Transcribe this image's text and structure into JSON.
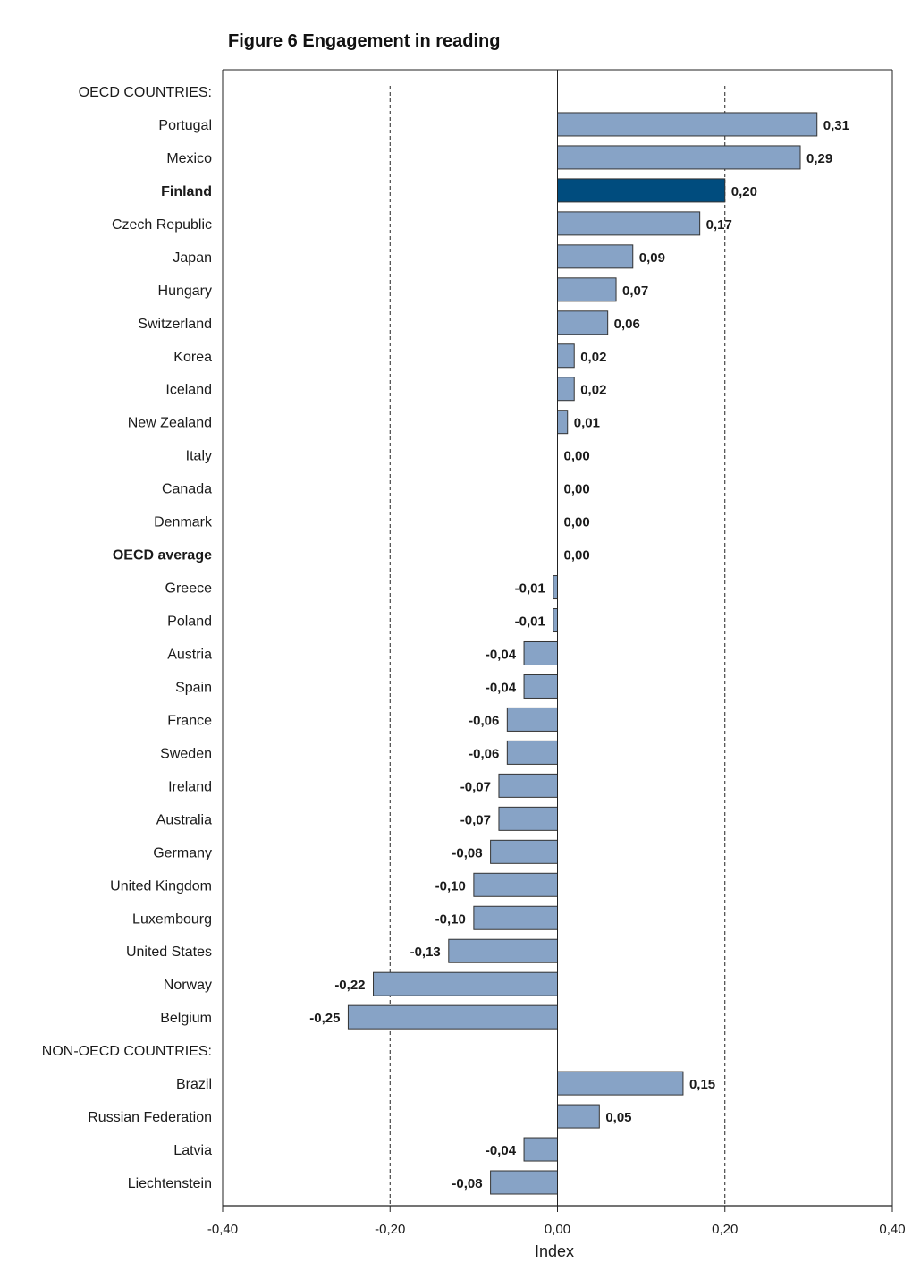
{
  "figure_title": "Figure 6  Engagement in reading",
  "colors": {
    "bar": "#87a3c6",
    "bar_highlight": "#004c7e",
    "highlight_text": "#1d5a8c",
    "bar_stroke": "#333333"
  },
  "chart_data": {
    "type": "bar",
    "orientation": "horizontal",
    "title": "Figure 6  Engagement in reading",
    "xlabel": "Index",
    "ylabel": "",
    "xlim": [
      -0.4,
      0.4
    ],
    "x_ticks": [
      -0.4,
      -0.2,
      0.0,
      0.2,
      0.4
    ],
    "x_tick_labels": [
      "-0,40",
      "-0,20",
      "0,00",
      "0,20",
      "0,40"
    ],
    "grid": "dashed vertical lines at -0,20 and 0,20",
    "rows": [
      {
        "label": "OECD COUNTRIES:",
        "kind": "header"
      },
      {
        "label": "Portugal",
        "value": 0.31,
        "value_label": "0,31"
      },
      {
        "label": "Mexico",
        "value": 0.29,
        "value_label": "0,29"
      },
      {
        "label": "Finland",
        "value": 0.2,
        "value_label": "0,20",
        "highlight": true
      },
      {
        "label": "Czech Republic",
        "value": 0.17,
        "value_label": "0,17"
      },
      {
        "label": "Japan",
        "value": 0.09,
        "value_label": "0,09"
      },
      {
        "label": "Hungary",
        "value": 0.07,
        "value_label": "0,07"
      },
      {
        "label": "Switzerland",
        "value": 0.06,
        "value_label": "0,06"
      },
      {
        "label": "Korea",
        "value": 0.02,
        "value_label": "0,02"
      },
      {
        "label": "Iceland",
        "value": 0.02,
        "value_label": "0,02"
      },
      {
        "label": "New Zealand",
        "value": 0.012,
        "value_label": "0,01"
      },
      {
        "label": "Italy",
        "value": 0.0,
        "value_label": "0,00"
      },
      {
        "label": "Canada",
        "value": 0.0,
        "value_label": "0,00"
      },
      {
        "label": "Denmark",
        "value": 0.0,
        "value_label": "0,00"
      },
      {
        "label": "OECD average",
        "value": 0.0,
        "value_label": "0,00",
        "bold": true
      },
      {
        "label": "Greece",
        "value": -0.005,
        "value_label": "-0,01"
      },
      {
        "label": "Poland",
        "value": -0.005,
        "value_label": "-0,01"
      },
      {
        "label": "Austria",
        "value": -0.04,
        "value_label": "-0,04"
      },
      {
        "label": "Spain",
        "value": -0.04,
        "value_label": "-0,04"
      },
      {
        "label": "France",
        "value": -0.06,
        "value_label": "-0,06"
      },
      {
        "label": "Sweden",
        "value": -0.06,
        "value_label": "-0,06"
      },
      {
        "label": "Ireland",
        "value": -0.07,
        "value_label": "-0,07"
      },
      {
        "label": "Australia",
        "value": -0.07,
        "value_label": "-0,07"
      },
      {
        "label": "Germany",
        "value": -0.08,
        "value_label": "-0,08"
      },
      {
        "label": "United Kingdom",
        "value": -0.1,
        "value_label": "-0,10"
      },
      {
        "label": "Luxembourg",
        "value": -0.1,
        "value_label": "-0,10"
      },
      {
        "label": "United States",
        "value": -0.13,
        "value_label": "-0,13"
      },
      {
        "label": "Norway",
        "value": -0.22,
        "value_label": "-0,22"
      },
      {
        "label": "Belgium",
        "value": -0.25,
        "value_label": "-0,25"
      },
      {
        "label": "NON-OECD COUNTRIES:",
        "kind": "header"
      },
      {
        "label": "Brazil",
        "value": 0.15,
        "value_label": "0,15"
      },
      {
        "label": "Russian Federation",
        "value": 0.05,
        "value_label": "0,05"
      },
      {
        "label": "Latvia",
        "value": -0.04,
        "value_label": "-0,04"
      },
      {
        "label": "Liechtenstein",
        "value": -0.08,
        "value_label": "-0,08"
      }
    ]
  }
}
